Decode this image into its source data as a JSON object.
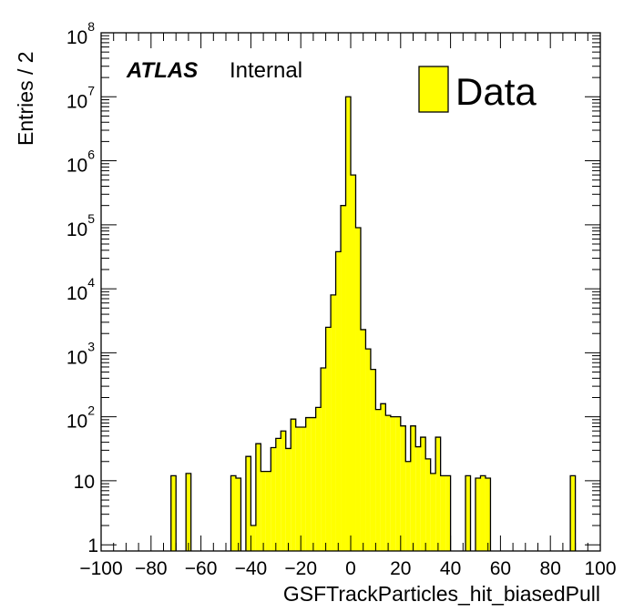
{
  "chart_data": {
    "type": "bar",
    "title": "",
    "xlabel": "GSFTrackParticles_hit_biasedPull",
    "ylabel": "Entries / 2",
    "x_range": [
      -100,
      100
    ],
    "y_range": [
      0.8,
      100000000
    ],
    "y_scale": "log",
    "bin_width": 2,
    "x_ticks": [
      -100,
      -80,
      -60,
      -40,
      -20,
      0,
      20,
      40,
      60,
      80,
      100
    ],
    "x_tick_labels": [
      "−100",
      "−80",
      "−60",
      "−40",
      "−20",
      "0",
      "20",
      "40",
      "60",
      "80",
      "100"
    ],
    "y_ticks": [
      {
        "value": 1,
        "base": "1",
        "exp": ""
      },
      {
        "value": 10,
        "base": "10",
        "exp": ""
      },
      {
        "value": 100,
        "base": "10",
        "exp": "2"
      },
      {
        "value": 1000,
        "base": "10",
        "exp": "3"
      },
      {
        "value": 10000,
        "base": "10",
        "exp": "4"
      },
      {
        "value": 100000,
        "base": "10",
        "exp": "5"
      },
      {
        "value": 1000000,
        "base": "10",
        "exp": "6"
      },
      {
        "value": 10000000,
        "base": "10",
        "exp": "7"
      },
      {
        "value": 100000000,
        "base": "10",
        "exp": "8"
      }
    ],
    "fill_color": "#ffff00",
    "edge_color": "#000000",
    "legend": {
      "label": "Data",
      "placement": "top-right"
    },
    "annotation": {
      "bold": "ATLAS",
      "normal": "Internal"
    },
    "series": [
      {
        "bins": [
          {
            "x": [
              -72,
              -70
            ],
            "y": 12
          },
          {
            "x": [
              -66,
              -64
            ],
            "y": 13
          },
          {
            "x": [
              -48,
              -46
            ],
            "y": 12
          },
          {
            "x": [
              -46,
              -44
            ],
            "y": 11
          },
          {
            "x": [
              -42,
              -40
            ],
            "y": 24
          },
          {
            "x": [
              -40,
              -38
            ],
            "y": 2
          },
          {
            "x": [
              -38,
              -36
            ],
            "y": 38
          },
          {
            "x": [
              -36,
              -34
            ],
            "y": 14
          },
          {
            "x": [
              -34,
              -32
            ],
            "y": 14
          },
          {
            "x": [
              -32,
              -30
            ],
            "y": 33
          },
          {
            "x": [
              -30,
              -28
            ],
            "y": 46
          },
          {
            "x": [
              -28,
              -26
            ],
            "y": 60
          },
          {
            "x": [
              -26,
              -24
            ],
            "y": 32
          },
          {
            "x": [
              -24,
              -22
            ],
            "y": 92
          },
          {
            "x": [
              -22,
              -20
            ],
            "y": 69
          },
          {
            "x": [
              -20,
              -18
            ],
            "y": 69
          },
          {
            "x": [
              -18,
              -16
            ],
            "y": 97
          },
          {
            "x": [
              -16,
              -14
            ],
            "y": 97
          },
          {
            "x": [
              -14,
              -12
            ],
            "y": 140
          },
          {
            "x": [
              -12,
              -10
            ],
            "y": 580
          },
          {
            "x": [
              -10,
              -8
            ],
            "y": 2500
          },
          {
            "x": [
              -8,
              -6
            ],
            "y": 8000
          },
          {
            "x": [
              -6,
              -4
            ],
            "y": 38000
          },
          {
            "x": [
              -4,
              -2
            ],
            "y": 200000
          },
          {
            "x": [
              -2,
              0
            ],
            "y": 10000000
          },
          {
            "x": [
              0,
              2
            ],
            "y": 600000
          },
          {
            "x": [
              2,
              4
            ],
            "y": 90000
          },
          {
            "x": [
              4,
              6
            ],
            "y": 2300
          },
          {
            "x": [
              6,
              8
            ],
            "y": 1150
          },
          {
            "x": [
              8,
              10
            ],
            "y": 550
          },
          {
            "x": [
              10,
              12
            ],
            "y": 130
          },
          {
            "x": [
              12,
              14
            ],
            "y": 160
          },
          {
            "x": [
              14,
              16
            ],
            "y": 105
          },
          {
            "x": [
              16,
              18
            ],
            "y": 100
          },
          {
            "x": [
              18,
              20
            ],
            "y": 100
          },
          {
            "x": [
              20,
              22
            ],
            "y": 72
          },
          {
            "x": [
              22,
              24
            ],
            "y": 20
          },
          {
            "x": [
              24,
              26
            ],
            "y": 72
          },
          {
            "x": [
              26,
              28
            ],
            "y": 34
          },
          {
            "x": [
              28,
              30
            ],
            "y": 48
          },
          {
            "x": [
              30,
              32
            ],
            "y": 22
          },
          {
            "x": [
              32,
              34
            ],
            "y": 13
          },
          {
            "x": [
              34,
              36
            ],
            "y": 48
          },
          {
            "x": [
              36,
              38
            ],
            "y": 12
          },
          {
            "x": [
              38,
              40
            ],
            "y": 12
          },
          {
            "x": [
              46,
              48
            ],
            "y": 12
          },
          {
            "x": [
              50,
              52
            ],
            "y": 11
          },
          {
            "x": [
              52,
              54
            ],
            "y": 12
          },
          {
            "x": [
              54,
              56
            ],
            "y": 11
          },
          {
            "x": [
              88,
              90
            ],
            "y": 12
          }
        ]
      }
    ]
  }
}
